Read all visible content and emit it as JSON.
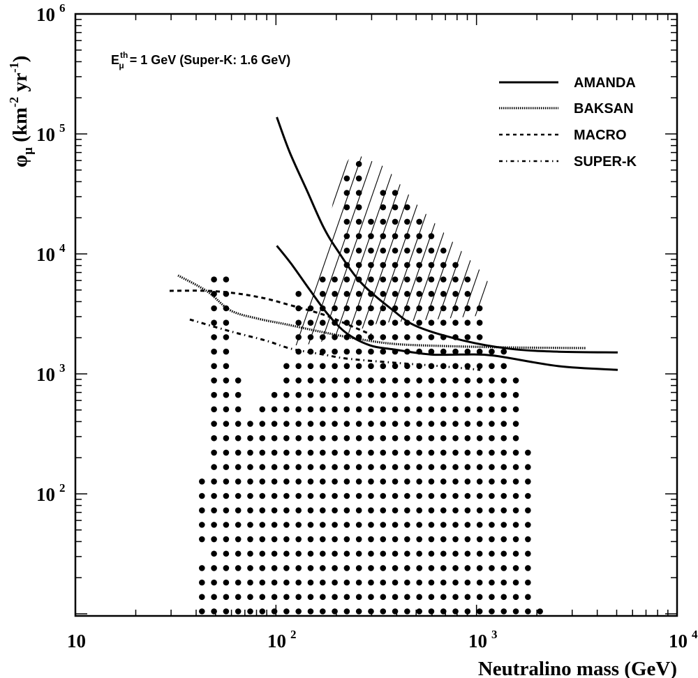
{
  "chart_data": {
    "type": "line",
    "xlabel": "Neutralino mass (GeV)",
    "ylabel": {
      "phi": "φ",
      "sub": "μ",
      "unit_open": " (km",
      "exp1": "-2",
      "unit_mid": " yr",
      "exp2": "-1",
      "unit_close": ")"
    },
    "xscale": "log",
    "yscale": "log",
    "xlim": [
      10,
      10000
    ],
    "ylim": [
      9.6,
      1000000
    ],
    "x_ticks": [
      {
        "base": "10",
        "exp": "",
        "value": 10
      },
      {
        "base": "10",
        "exp": "2",
        "value": 100
      },
      {
        "base": "10",
        "exp": "3",
        "value": 1000
      },
      {
        "base": "10",
        "exp": "4",
        "value": 10000
      }
    ],
    "y_ticks": [
      {
        "base": "10",
        "exp": "6",
        "value": 1000000
      },
      {
        "base": "10",
        "exp": "5",
        "value": 100000
      },
      {
        "base": "10",
        "exp": "4",
        "value": 10000
      },
      {
        "base": "10",
        "exp": "3",
        "value": 1000
      },
      {
        "base": "10",
        "exp": "2",
        "value": 100
      }
    ],
    "annotation": {
      "E": "E",
      "sup": "th",
      "sub": "μ",
      "rest": " = 1 GeV (Super-K: 1.6 GeV)"
    },
    "legend_position": "top-right",
    "series": [
      {
        "name": "AMANDA",
        "style": "solid",
        "x": [
          101,
          117,
          143,
          172,
          202,
          265,
          384,
          504,
          855,
          1462,
          2560,
          5060
        ],
        "y": [
          138000,
          70600,
          33500,
          16900,
          10800,
          5780,
          3380,
          2490,
          1900,
          1620,
          1530,
          1510
        ]
      },
      {
        "name": "AMANDA",
        "style": "solid",
        "in_legend": false,
        "x": [
          101,
          119,
          147,
          182,
          226,
          294,
          384,
          591,
          855,
          1217,
          2560,
          5060
        ],
        "y": [
          11700,
          8300,
          5050,
          3120,
          2170,
          1730,
          1600,
          1450,
          1450,
          1420,
          1160,
          1080
        ]
      },
      {
        "name": "BAKSAN",
        "style": "dotted",
        "x": [
          32.5,
          45.5,
          59.3,
          81.7,
          112,
          164,
          245,
          384,
          656,
          1462,
          3530
        ],
        "y": [
          6610,
          4860,
          3380,
          2880,
          2590,
          2260,
          1980,
          1780,
          1710,
          1660,
          1640
        ]
      },
      {
        "name": "MACRO",
        "style": "dashed",
        "x": [
          29.5,
          45.5,
          64.3,
          88.5,
          119,
          172,
          226,
          299
        ],
        "y": [
          4920,
          4920,
          4670,
          4250,
          3720,
          3120,
          2590,
          2120
        ]
      },
      {
        "name": "SUPER-K",
        "style": "dashdot",
        "x": [
          37.2,
          59.3,
          88.5,
          119,
          172,
          226,
          384,
          656,
          1045
        ],
        "y": [
          2840,
          2260,
          1900,
          1620,
          1450,
          1340,
          1240,
          1160,
          1080
        ]
      }
    ],
    "scatter_grid": {
      "log10_mass_start": 1.631,
      "log10_mass_step": 0.0602,
      "log10_flux_start": 1.02,
      "log10_flux_step": 0.1203,
      "column_top_row": [
        9,
        23,
        23,
        16,
        13,
        14,
        15,
        17,
        22,
        21,
        23,
        23,
        30,
        31,
        27,
        29,
        29,
        28,
        27,
        26,
        25,
        24,
        23,
        21,
        18,
        18,
        16,
        11,
        0
      ],
      "missing_points": [
        [
          0,
          4
        ]
      ]
    },
    "hatched_region": {
      "mass": [
        112,
        143,
        175,
        192,
        200,
        231,
        265,
        354,
        504,
        728,
        1061,
        1206,
        1027,
        621,
        327,
        168,
        137
      ],
      "flux": [
        1730,
        5550,
        9860,
        26500,
        42500,
        61800,
        65200,
        52600,
        25900,
        13600,
        7060,
        5050,
        3040,
        2840,
        2650,
        1850,
        1730
      ]
    }
  }
}
